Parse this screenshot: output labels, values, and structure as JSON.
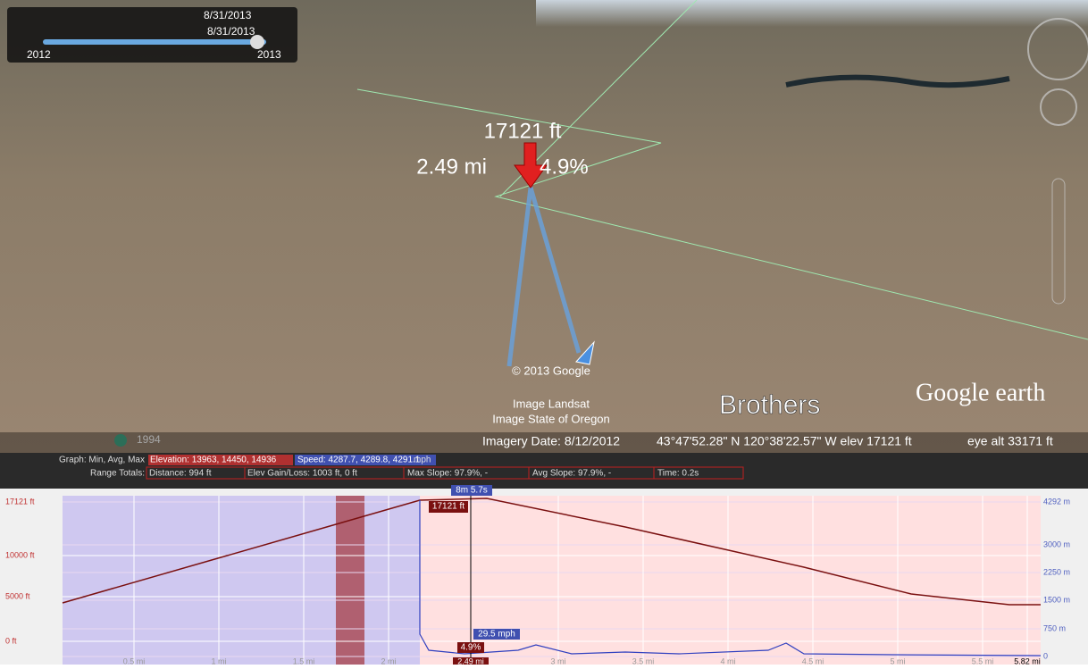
{
  "time_slider": {
    "date_top": "8/31/2013",
    "date_bottom": "8/31/2013",
    "start_year": "2012",
    "end_year": "2013"
  },
  "map": {
    "elevation_label": "17121 ft",
    "distance_label": "2.49 mi",
    "slope_label": "4.9%",
    "copyright": "© 2013 Google",
    "credit_1": "Image Landsat",
    "credit_2": "Image State of Oregon",
    "place": "Brothers",
    "logo": "Google earth",
    "historical_year": "1994"
  },
  "status_bar": {
    "imagery_date": "Imagery Date: 8/12/2012",
    "coords": "43°47'52.28\" N  120°38'22.57\" W  elev 17121 ft",
    "eye_alt": "eye alt 33171 ft"
  },
  "graph_header": {
    "graph_label": "Graph: Min, Avg, Max",
    "elevation": "Elevation: 13963, 14450, 14936",
    "speed": "Speed: 4287.7, 4289.8, 4291.1",
    "speed_unit": "mph",
    "range_label": "Range Totals:",
    "distance": "Distance: 994 ft",
    "elev_gain": "Elev Gain/Loss: 1003 ft, 0 ft",
    "max_slope": "Max Slope: 97.9%, -",
    "avg_slope": "Avg Slope: 97.9%, -",
    "time": "Time: 0.2s"
  },
  "profile": {
    "left_axis": [
      "17121 ft",
      "10000 ft",
      "5000 ft",
      "0 ft"
    ],
    "right_axis": [
      "4292 m",
      "3000 m",
      "2250 m",
      "1500 m",
      "750 m",
      "0"
    ],
    "x_axis": [
      "0.5 mi",
      "1 mi",
      "1.5 mi",
      "2 mi",
      "2.49 mi",
      "3 mi",
      "3.5 mi",
      "4 mi",
      "4.5 mi",
      "5 mi",
      "5.5 mi",
      "5.82 mi"
    ],
    "cursor_time": "8m 5.7s",
    "cursor_elev": "17121 ft",
    "cursor_speed": "29.5 mph",
    "cursor_slope": "4.9%"
  }
}
